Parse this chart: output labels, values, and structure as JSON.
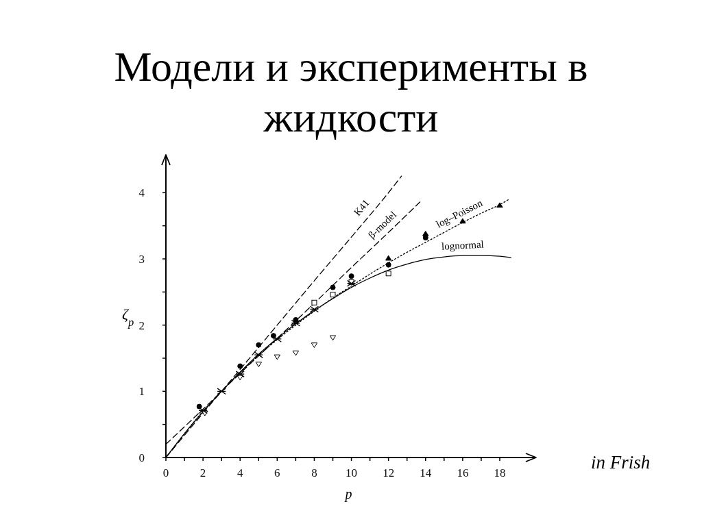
{
  "chart_data": {
    "type": "scatter",
    "title": "Модели и эксперименты в жидкости",
    "xlabel": "p",
    "ylabel": "ζ$_{p}$",
    "annotations": [
      "in Frish"
    ],
    "xlim": [
      0,
      19.7
    ],
    "xticks": [
      0,
      {
        "value": 1,
        "label": null
      },
      2,
      {
        "value": 3,
        "label": null
      },
      4,
      {
        "value": 5,
        "label": null
      },
      6,
      {
        "value": 7,
        "label": null
      },
      8,
      {
        "value": 9,
        "label": null
      },
      10,
      {
        "value": 11,
        "label": null
      },
      12,
      {
        "value": 13,
        "label": null
      },
      14,
      {
        "value": 15,
        "label": null
      },
      16,
      {
        "value": 17,
        "label": null
      },
      18
    ],
    "ylim": [
      0,
      4.5
    ],
    "yticks": [
      0,
      {
        "value": 0.5,
        "label": null
      },
      1,
      {
        "value": 1.5,
        "label": null
      },
      2,
      {
        "value": 2.5,
        "label": null
      },
      3,
      {
        "value": 3.5,
        "label": null
      },
      4
    ],
    "series": [
      {
        "name": "K41",
        "type": "line",
        "color": "#000000",
        "line_style": "dashed",
        "marker": "none",
        "x": [
          0,
          2,
          4,
          6,
          8,
          10,
          12,
          12.7
        ],
        "values": [
          0,
          0.67,
          1.33,
          2.0,
          2.67,
          3.33,
          4.0,
          4.25
        ]
      },
      {
        "name": "β-model",
        "type": "line",
        "color": "#000000",
        "line_style": "dashed",
        "marker": "none",
        "x": [
          0,
          2,
          4,
          6,
          8,
          10,
          12,
          13.7
        ],
        "values": [
          0.2,
          0.73,
          1.27,
          1.8,
          2.33,
          2.87,
          3.4,
          3.86
        ]
      },
      {
        "name": "log–Poisson",
        "type": "line",
        "color": "#000000",
        "line_style": "dotted",
        "marker": "none",
        "x": [
          0,
          1,
          2,
          3,
          4,
          5,
          6,
          7,
          8,
          9,
          10,
          11,
          12,
          13,
          14,
          15,
          16,
          17,
          18,
          18.5
        ],
        "values": [
          0,
          0.36,
          0.7,
          1.0,
          1.28,
          1.54,
          1.78,
          2.0,
          2.21,
          2.41,
          2.59,
          2.77,
          2.94,
          3.1,
          3.25,
          3.4,
          3.55,
          3.69,
          3.82,
          3.9
        ]
      },
      {
        "name": "lognormal",
        "type": "line",
        "color": "#000000",
        "line_style": "solid",
        "marker": "none",
        "x": [
          0,
          1,
          2,
          3,
          4,
          5,
          6,
          7,
          8,
          9,
          10,
          11,
          12,
          13,
          14,
          15,
          16,
          17,
          18,
          18.6
        ],
        "values": [
          0,
          0.36,
          0.69,
          1.0,
          1.29,
          1.56,
          1.8,
          2.02,
          2.22,
          2.4,
          2.57,
          2.71,
          2.83,
          2.92,
          2.99,
          3.03,
          3.05,
          3.05,
          3.04,
          3.02
        ]
      },
      {
        "color": "#000000",
        "marker": "circle",
        "x": [
          1.8,
          4,
          5,
          5.8,
          7,
          9,
          10,
          12,
          14
        ],
        "values": [
          0.77,
          1.38,
          1.7,
          1.84,
          2.08,
          2.57,
          2.74,
          2.91,
          3.32
        ]
      },
      {
        "color": "#000000",
        "marker": "triangle",
        "x": [
          12,
          14,
          16,
          18
        ],
        "values": [
          3.01,
          3.38,
          3.57,
          3.81
        ]
      },
      {
        "color": "#000000",
        "marker": "square",
        "x": [
          8,
          9,
          10,
          12
        ],
        "values": [
          2.34,
          2.46,
          2.65,
          2.78
        ]
      },
      {
        "color": "#000000",
        "marker": "triangle",
        "x": [
          2.1,
          4,
          5,
          6,
          7,
          8,
          9
        ],
        "values": [
          0.67,
          1.21,
          1.41,
          1.52,
          1.58,
          1.7,
          1.81
        ]
      },
      {
        "color": "#000000",
        "marker": "cross",
        "x": [
          2,
          3,
          4,
          5,
          6,
          7,
          8,
          10
        ],
        "values": [
          0.71,
          1.0,
          1.26,
          1.55,
          1.79,
          2.03,
          2.24,
          2.63
        ]
      }
    ]
  }
}
